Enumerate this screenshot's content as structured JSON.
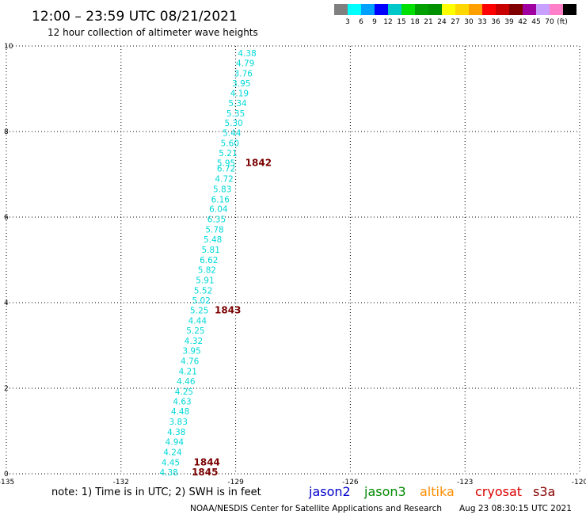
{
  "header": {
    "title": "12:00 – 23:59 UTC 08/21/2021",
    "subtitle": "12 hour collection of altimeter wave heights"
  },
  "colorbar": {
    "colors": [
      "#808080",
      "#00ffff",
      "#00a0ff",
      "#0000ff",
      "#00c8c8",
      "#00e000",
      "#00a000",
      "#009000",
      "#ffff00",
      "#ffd700",
      "#ffa000",
      "#ff0000",
      "#c80000",
      "#800000",
      "#a000a0",
      "#c8a0ff",
      "#ff80c8",
      "#000000"
    ],
    "labels": [
      "3",
      "6",
      "9",
      "12",
      "15",
      "18",
      "21",
      "24",
      "27",
      "30",
      "33",
      "36",
      "39",
      "42",
      "45",
      "70"
    ],
    "unit": "(ft)"
  },
  "chart_data": {
    "type": "scatter",
    "xlim": [
      -135,
      -120
    ],
    "ylim": [
      0,
      10
    ],
    "xticks": [
      "-135",
      "-132",
      "-129",
      "-126",
      "-123",
      "-120"
    ],
    "yticks": [
      "10",
      "8",
      "6",
      "4",
      "2",
      "0"
    ],
    "grid": true,
    "xlabel": "",
    "ylabel": "",
    "track": [
      {
        "lon": -128.7,
        "lat": 9.83,
        "swh": "4.38"
      },
      {
        "lon": -128.75,
        "lat": 9.6,
        "swh": "4.79"
      },
      {
        "lon": -128.8,
        "lat": 9.36,
        "swh": "3.76"
      },
      {
        "lon": -128.85,
        "lat": 9.13,
        "swh": "3.95"
      },
      {
        "lon": -128.9,
        "lat": 8.9,
        "swh": "4.19"
      },
      {
        "lon": -128.95,
        "lat": 8.67,
        "swh": "5.34"
      },
      {
        "lon": -129.0,
        "lat": 8.43,
        "swh": "5.35"
      },
      {
        "lon": -129.05,
        "lat": 8.2,
        "swh": "5.30"
      },
      {
        "lon": -129.1,
        "lat": 7.97,
        "swh": "5.44"
      },
      {
        "lon": -129.15,
        "lat": 7.73,
        "swh": "5.60"
      },
      {
        "lon": -129.2,
        "lat": 7.5,
        "swh": "5.21"
      },
      {
        "lon": -129.25,
        "lat": 7.27,
        "swh": "5.95"
      },
      {
        "lon": -129.25,
        "lat": 7.14,
        "swh": "6.72"
      },
      {
        "lon": -129.3,
        "lat": 6.9,
        "swh": "4.72"
      },
      {
        "lon": -129.35,
        "lat": 6.66,
        "swh": "5.83"
      },
      {
        "lon": -129.4,
        "lat": 6.42,
        "swh": "6.16"
      },
      {
        "lon": -129.45,
        "lat": 6.19,
        "swh": "6.04"
      },
      {
        "lon": -129.5,
        "lat": 5.95,
        "swh": "6.35"
      },
      {
        "lon": -129.55,
        "lat": 5.71,
        "swh": "5.78"
      },
      {
        "lon": -129.6,
        "lat": 5.48,
        "swh": "5.48"
      },
      {
        "lon": -129.65,
        "lat": 5.24,
        "swh": "5.81"
      },
      {
        "lon": -129.7,
        "lat": 5.0,
        "swh": "6.62"
      },
      {
        "lon": -129.75,
        "lat": 4.77,
        "swh": "5.82"
      },
      {
        "lon": -129.8,
        "lat": 4.53,
        "swh": "5.91"
      },
      {
        "lon": -129.85,
        "lat": 4.29,
        "swh": "5.52"
      },
      {
        "lon": -129.9,
        "lat": 4.06,
        "swh": "5.02"
      },
      {
        "lon": -129.95,
        "lat": 3.82,
        "swh": "5.25"
      },
      {
        "lon": -130.0,
        "lat": 3.58,
        "swh": "4.44"
      },
      {
        "lon": -130.05,
        "lat": 3.35,
        "swh": "5.25"
      },
      {
        "lon": -130.1,
        "lat": 3.11,
        "swh": "4.32"
      },
      {
        "lon": -130.15,
        "lat": 2.88,
        "swh": "3.95"
      },
      {
        "lon": -130.2,
        "lat": 2.64,
        "swh": "4.76"
      },
      {
        "lon": -130.25,
        "lat": 2.4,
        "swh": "4.21"
      },
      {
        "lon": -130.3,
        "lat": 2.17,
        "swh": "4.46"
      },
      {
        "lon": -130.35,
        "lat": 1.93,
        "swh": "4.25"
      },
      {
        "lon": -130.4,
        "lat": 1.69,
        "swh": "4.63"
      },
      {
        "lon": -130.45,
        "lat": 1.46,
        "swh": "4.48"
      },
      {
        "lon": -130.5,
        "lat": 1.22,
        "swh": "3.83"
      },
      {
        "lon": -130.55,
        "lat": 0.98,
        "swh": "4.38"
      },
      {
        "lon": -130.6,
        "lat": 0.75,
        "swh": "4.94"
      },
      {
        "lon": -130.65,
        "lat": 0.51,
        "swh": "4.24"
      },
      {
        "lon": -130.7,
        "lat": 0.27,
        "swh": "4.45"
      },
      {
        "lon": -130.75,
        "lat": 0.04,
        "swh": "4.38"
      }
    ],
    "cycles": [
      {
        "lon": -128.75,
        "lat": 7.27,
        "label": "1842"
      },
      {
        "lon": -129.55,
        "lat": 3.82,
        "label": "1843"
      },
      {
        "lon": -130.1,
        "lat": 0.27,
        "label": "1844"
      },
      {
        "lon": -130.15,
        "lat": 0.04,
        "label": "1845"
      }
    ]
  },
  "note": "note:  1) Time is in UTC;  2) SWH is in feet",
  "satellites": [
    {
      "name": "jason2",
      "color": "#0000cc"
    },
    {
      "name": "jason3",
      "color": "#008800"
    },
    {
      "name": "altika",
      "color": "#ff8c00"
    },
    {
      "name": "cryosat",
      "color": "#dd0000"
    },
    {
      "name": "s3a",
      "color": "#880000"
    }
  ],
  "footer": {
    "credit": "NOAA/NESDIS Center for Satellite Applications and Research",
    "timestamp": "Aug 23 08:30:15 UTC 2021"
  }
}
